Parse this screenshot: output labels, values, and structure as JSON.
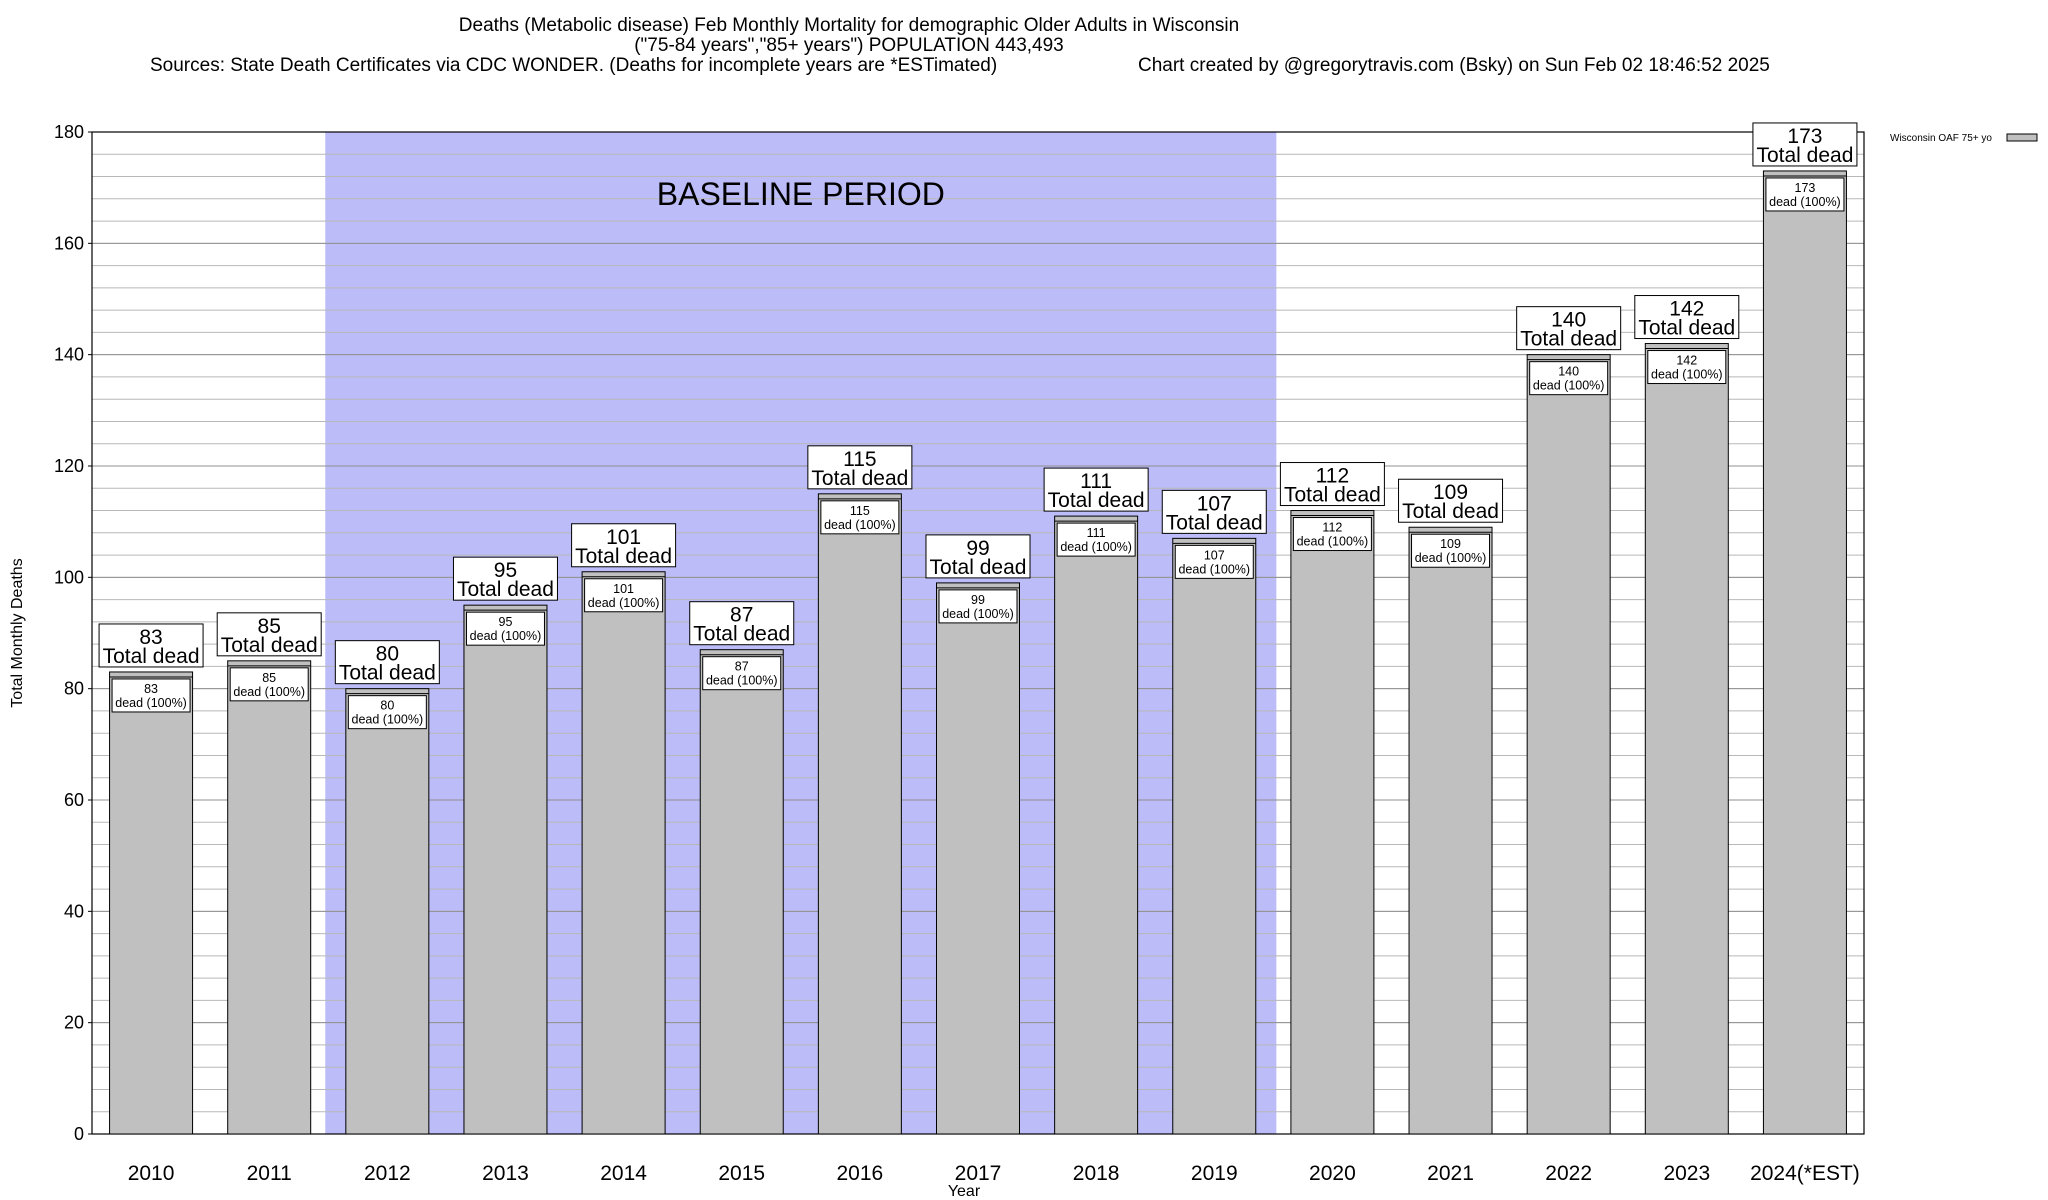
{
  "chart_data": {
    "type": "bar",
    "title_lines": [
      "Deaths (Metabolic disease) Feb Monthly Mortality for demographic Older Adults in Wisconsin",
      "(\"75-84 years\",\"85+ years\") POPULATION 443,493",
      "Sources: State Death Certificates via CDC WONDER. (Deaths for incomplete years are *ESTimated)",
      "Chart created by @gregorytravis.com (Bsky) on Sun Feb 02 18:46:52 2025"
    ],
    "xlabel": "Year",
    "ylabel": "Total Monthly Deaths",
    "ylim": [
      0,
      180
    ],
    "y_ticks": [
      0,
      20,
      40,
      60,
      80,
      100,
      120,
      140,
      160,
      180
    ],
    "categories": [
      "2010",
      "2011",
      "2012",
      "2013",
      "2014",
      "2015",
      "2016",
      "2017",
      "2018",
      "2019",
      "2020",
      "2021",
      "2022",
      "2023",
      "2024(*EST)"
    ],
    "values": [
      83,
      85,
      80,
      95,
      101,
      87,
      115,
      99,
      111,
      107,
      112,
      109,
      140,
      142,
      173
    ],
    "total_label": "Total dead",
    "inner_label_suffix": "dead (100%)",
    "baseline_label": "BASELINE PERIOD",
    "baseline_range": [
      "2012",
      "2019"
    ],
    "legend_entry": "Wisconsin OAF 75+ yo",
    "bar_color": "#c0c0c0",
    "baseline_color": "#bcbcf8",
    "grid": true
  }
}
